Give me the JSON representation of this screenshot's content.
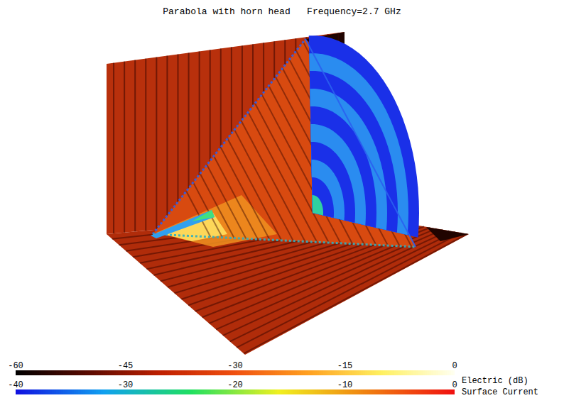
{
  "chart_data": {
    "type": "field_plot",
    "title": "Parabola with horn head   Frequency=2.7 GHz",
    "colorbars": [
      {
        "name": "Electric (dB)",
        "range": [
          -60,
          0
        ],
        "ticks": [
          -60,
          -45,
          -30,
          -15,
          0
        ],
        "colors": [
          "#000000",
          "#5a0a00",
          "#c02000",
          "#f05010",
          "#ffa020",
          "#fff060",
          "#fffff0"
        ]
      },
      {
        "name": "Surface Current",
        "range": [
          -40,
          0
        ],
        "ticks": [
          -40,
          -30,
          -20,
          -10,
          0
        ],
        "colors": [
          "#1010e0",
          "#10a0f0",
          "#20e060",
          "#f0f020",
          "#f08010",
          "#f01010"
        ]
      }
    ]
  }
}
